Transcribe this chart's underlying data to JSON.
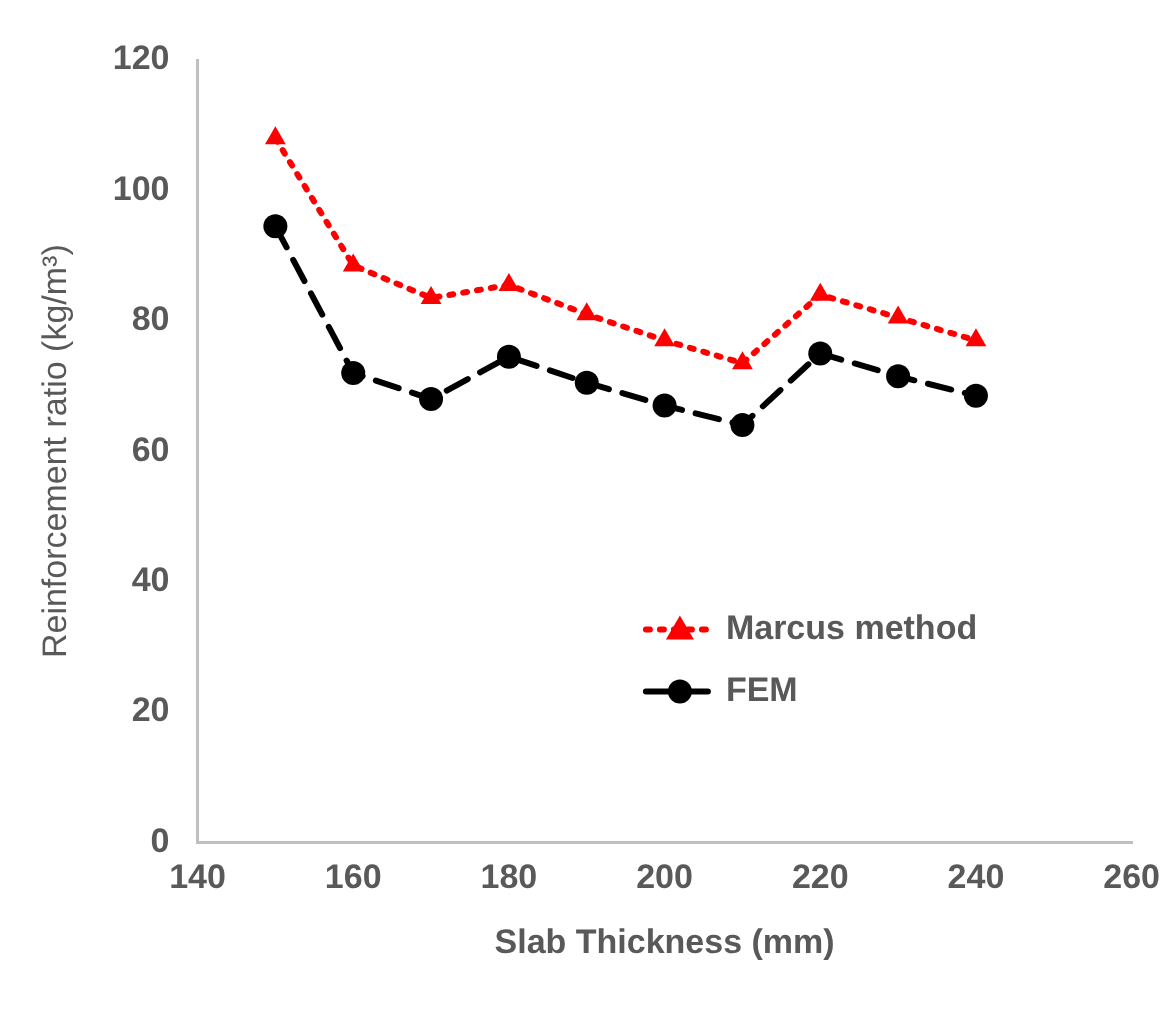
{
  "chart_data": {
    "type": "line",
    "xlabel": "Slab Thickness (mm)",
    "ylabel": "Reinforcement ratio (kg/m³)",
    "x": [
      150,
      160,
      170,
      180,
      190,
      200,
      210,
      220,
      230,
      240
    ],
    "series": [
      {
        "name": "Marcus method",
        "color": "#ff0000",
        "marker": "triangle",
        "line_style": "dotted",
        "values": [
          108,
          88.5,
          83.5,
          85.5,
          81,
          77,
          73.5,
          84,
          80.5,
          77
        ]
      },
      {
        "name": "FEM",
        "color": "#000000",
        "marker": "circle",
        "line_style": "dashed",
        "values": [
          94.5,
          72,
          68,
          74.5,
          70.5,
          67,
          64,
          75,
          71.5,
          68.5
        ]
      }
    ],
    "xlim": [
      140,
      260
    ],
    "xticks": [
      140,
      160,
      180,
      200,
      220,
      240,
      260
    ],
    "ylim": [
      0,
      120
    ],
    "yticks": [
      0,
      20,
      40,
      60,
      80,
      100,
      120
    ],
    "grid": false,
    "legend": "bottom right"
  }
}
